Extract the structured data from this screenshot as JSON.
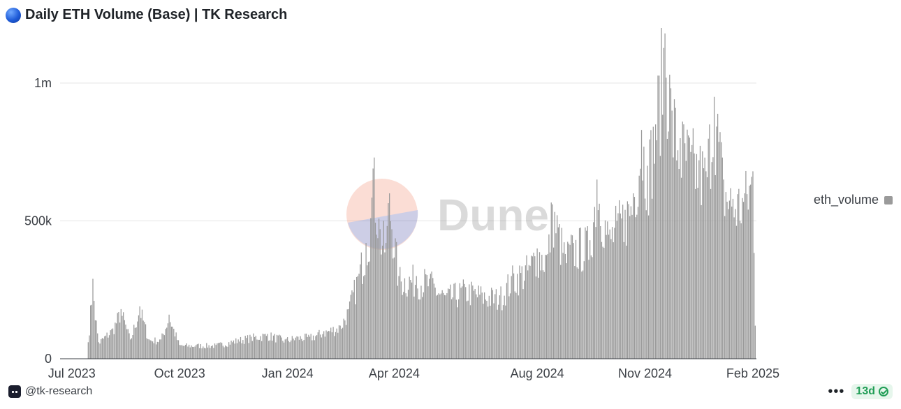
{
  "header": {
    "icon": "blue-circle-icon",
    "title": "Daily ETH Volume (Base) | TK Research"
  },
  "watermark": {
    "text": "Dune",
    "icon": "dune-logo-icon"
  },
  "legend": {
    "label": "eth_volume",
    "color": "#9a9a9a"
  },
  "footer": {
    "handle": "@tk-research",
    "more_label": "•••",
    "freshness_label": "13d",
    "freshness_icon": "check-circle-icon"
  },
  "chart_data": {
    "type": "bar",
    "x_range": [
      "2023-06-21",
      "2025-02-04"
    ],
    "ylim": [
      0,
      1200000
    ],
    "y_ticks": [
      {
        "value": 0,
        "label": "0"
      },
      {
        "value": 500000,
        "label": "500k"
      },
      {
        "value": 1000000,
        "label": "1m"
      }
    ],
    "x_ticks": [
      {
        "date": "2023-07-01",
        "label": "Jul 2023"
      },
      {
        "date": "2023-10-01",
        "label": "Oct 2023"
      },
      {
        "date": "2024-01-01",
        "label": "Jan 2024"
      },
      {
        "date": "2024-04-01",
        "label": "Apr 2024"
      },
      {
        "date": "2024-08-01",
        "label": "Aug 2024"
      },
      {
        "date": "2024-11-01",
        "label": "Nov 2024"
      },
      {
        "date": "2025-02-01",
        "label": "Feb 2025"
      }
    ],
    "grid": "horizontal",
    "legend_position": "right",
    "series": [
      {
        "name": "eth_volume",
        "color": "#9a9a9a",
        "x_start": "2023-07-15",
        "x_end": "2025-02-03",
        "x_step": "1 day",
        "anchors": [
          [
            "2023-07-15",
            60000
          ],
          [
            "2023-07-19",
            290000
          ],
          [
            "2023-07-20",
            210000
          ],
          [
            "2023-07-24",
            60000
          ],
          [
            "2023-08-05",
            110000
          ],
          [
            "2023-08-12",
            180000
          ],
          [
            "2023-08-20",
            70000
          ],
          [
            "2023-08-28",
            190000
          ],
          [
            "2023-09-05",
            70000
          ],
          [
            "2023-09-15",
            70000
          ],
          [
            "2023-09-22",
            160000
          ],
          [
            "2023-10-01",
            50000
          ],
          [
            "2023-10-15",
            50000
          ],
          [
            "2023-11-01",
            50000
          ],
          [
            "2023-11-20",
            70000
          ],
          [
            "2023-12-01",
            80000
          ],
          [
            "2023-12-15",
            90000
          ],
          [
            "2023-12-30",
            70000
          ],
          [
            "2024-01-10",
            80000
          ],
          [
            "2024-01-20",
            80000
          ],
          [
            "2024-02-01",
            100000
          ],
          [
            "2024-02-15",
            120000
          ],
          [
            "2024-02-22",
            180000
          ],
          [
            "2024-03-01",
            300000
          ],
          [
            "2024-03-08",
            420000
          ],
          [
            "2024-03-12",
            510000
          ],
          [
            "2024-03-14",
            690000
          ],
          [
            "2024-03-20",
            470000
          ],
          [
            "2024-03-25",
            420000
          ],
          [
            "2024-03-28",
            600000
          ],
          [
            "2024-04-05",
            300000
          ],
          [
            "2024-04-20",
            300000
          ],
          [
            "2024-05-01",
            290000
          ],
          [
            "2024-05-15",
            230000
          ],
          [
            "2024-06-01",
            260000
          ],
          [
            "2024-06-15",
            240000
          ],
          [
            "2024-06-30",
            230000
          ],
          [
            "2024-07-10",
            300000
          ],
          [
            "2024-07-25",
            340000
          ],
          [
            "2024-08-01",
            400000
          ],
          [
            "2024-08-10",
            380000
          ],
          [
            "2024-08-14",
            560000
          ],
          [
            "2024-08-25",
            380000
          ],
          [
            "2024-09-01",
            420000
          ],
          [
            "2024-09-15",
            430000
          ],
          [
            "2024-09-21",
            650000
          ],
          [
            "2024-10-01",
            450000
          ],
          [
            "2024-10-08",
            500000
          ],
          [
            "2024-10-15",
            540000
          ],
          [
            "2024-10-22",
            600000
          ],
          [
            "2024-10-29",
            830000
          ],
          [
            "2024-11-03",
            700000
          ],
          [
            "2024-11-10",
            850000
          ],
          [
            "2024-11-18",
            1180000
          ],
          [
            "2024-11-24",
            900000
          ],
          [
            "2024-12-01",
            800000
          ],
          [
            "2024-12-10",
            750000
          ],
          [
            "2024-12-17",
            720000
          ],
          [
            "2024-12-23",
            680000
          ],
          [
            "2024-12-30",
            950000
          ],
          [
            "2025-01-07",
            650000
          ],
          [
            "2025-01-15",
            580000
          ],
          [
            "2025-01-25",
            600000
          ],
          [
            "2025-02-01",
            680000
          ],
          [
            "2025-02-03",
            120000
          ]
        ]
      }
    ]
  }
}
